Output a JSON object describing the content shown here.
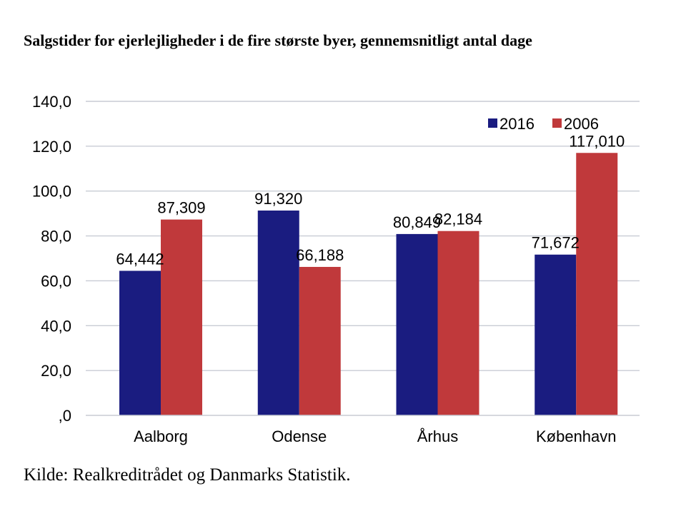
{
  "chart_data": {
    "type": "bar",
    "title": "Salgstider for ejerlejligheder i de fire største byer, gennemsnitligt antal dage",
    "categories": [
      "Aalborg",
      "Odense",
      "Århus",
      "København"
    ],
    "series": [
      {
        "name": "2016",
        "color": "#1a1c80",
        "values": [
          64.442,
          91.32,
          80.849,
          71.672
        ],
        "labels": [
          "64,442",
          "91,320",
          "80,849",
          "71,672"
        ]
      },
      {
        "name": "2006",
        "color": "#c0393b",
        "values": [
          87.309,
          66.188,
          82.184,
          117.01
        ],
        "labels": [
          "87,309",
          "66,188",
          "82,184",
          "117,010"
        ]
      }
    ],
    "ylim": [
      0,
      140
    ],
    "yticks": [
      {
        "value": 0,
        "label": ",0"
      },
      {
        "value": 20,
        "label": "20,0"
      },
      {
        "value": 40,
        "label": "40,0"
      },
      {
        "value": 60,
        "label": "60,0"
      },
      {
        "value": 80,
        "label": "80,0"
      },
      {
        "value": 100,
        "label": "100,0"
      },
      {
        "value": 120,
        "label": "120,0"
      },
      {
        "value": 140,
        "label": "140,0"
      }
    ],
    "grid": true,
    "gridColor": "#c8ccd4",
    "legend": "top-right",
    "xlabel": "",
    "ylabel": ""
  },
  "source": "Kilde: Realkreditrådet og Danmarks Statistik."
}
